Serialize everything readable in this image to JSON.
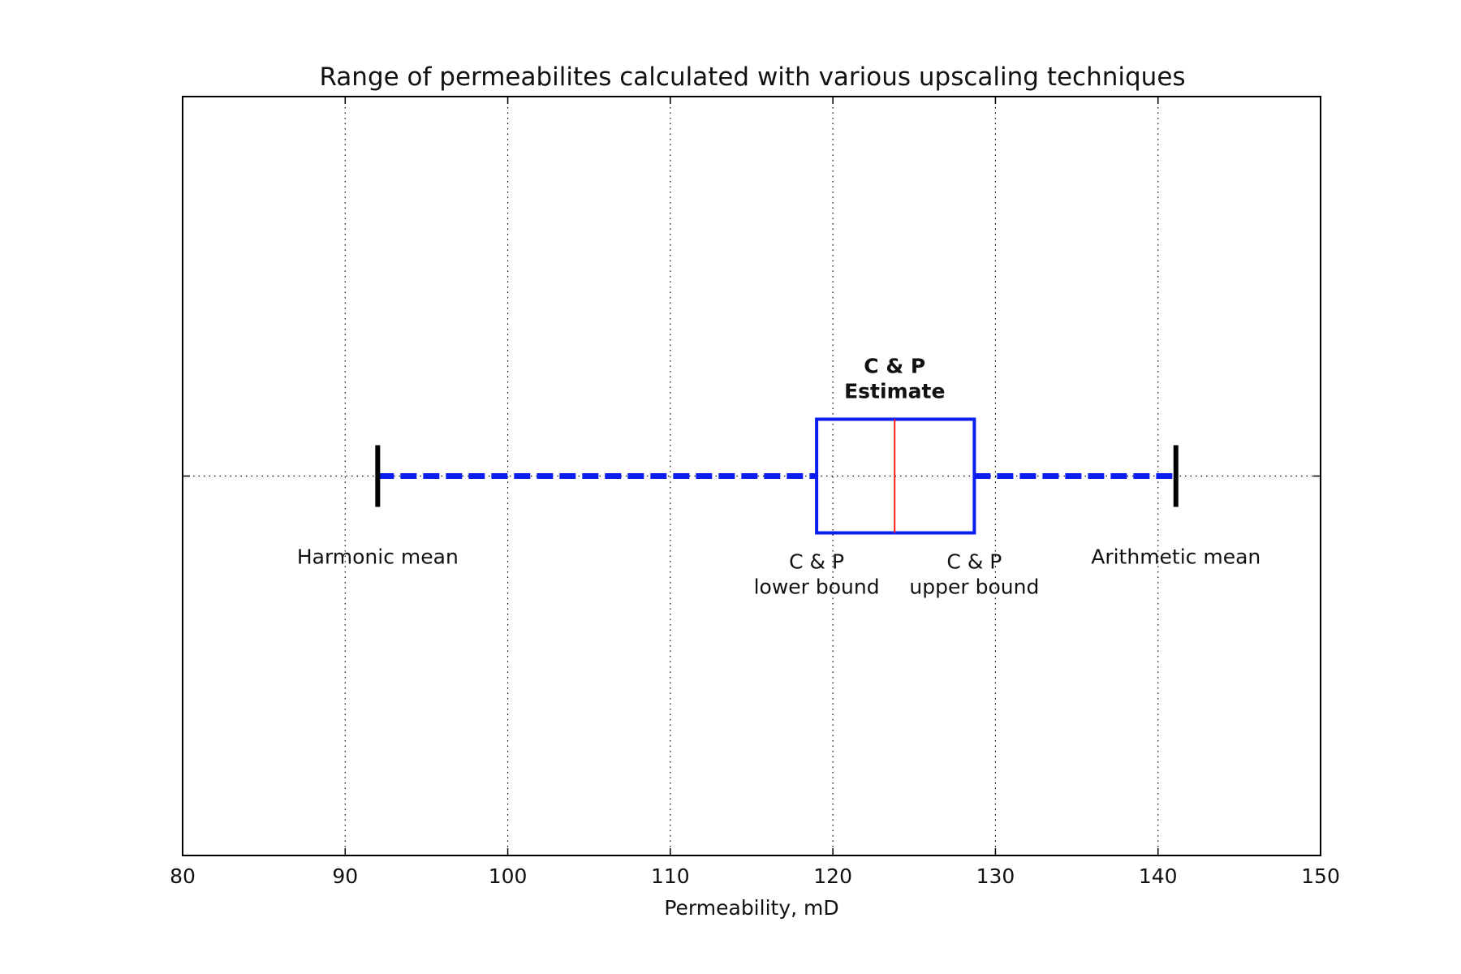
{
  "chart_data": {
    "type": "boxplot",
    "title": "Range of permeabilites calculated with various upscaling techniques",
    "xlabel": "Permeability, mD",
    "ylabel": "",
    "xlim": [
      80,
      150
    ],
    "xticks": [
      80,
      90,
      100,
      110,
      120,
      130,
      140,
      150
    ],
    "grid": true,
    "box": {
      "lower": 119.0,
      "median": 123.8,
      "upper": 128.7,
      "whisker_low": 92.0,
      "whisker_high": 141.1
    },
    "annotations": [
      {
        "text": [
          "C & P",
          "Estimate"
        ],
        "bold": true,
        "x": 123.8
      },
      {
        "text": [
          "Harmonic mean"
        ],
        "x": 92.0
      },
      {
        "text": [
          "C & P",
          "lower bound"
        ],
        "x": 119.0
      },
      {
        "text": [
          "C & P",
          "upper bound"
        ],
        "x": 128.7
      },
      {
        "text": [
          "Arithmetic mean"
        ],
        "x": 141.1
      }
    ],
    "colors": {
      "box": "#0a1ef0",
      "whisker": "#0a1ef0",
      "median": "#ff1a1a",
      "cap": "#000000"
    }
  }
}
